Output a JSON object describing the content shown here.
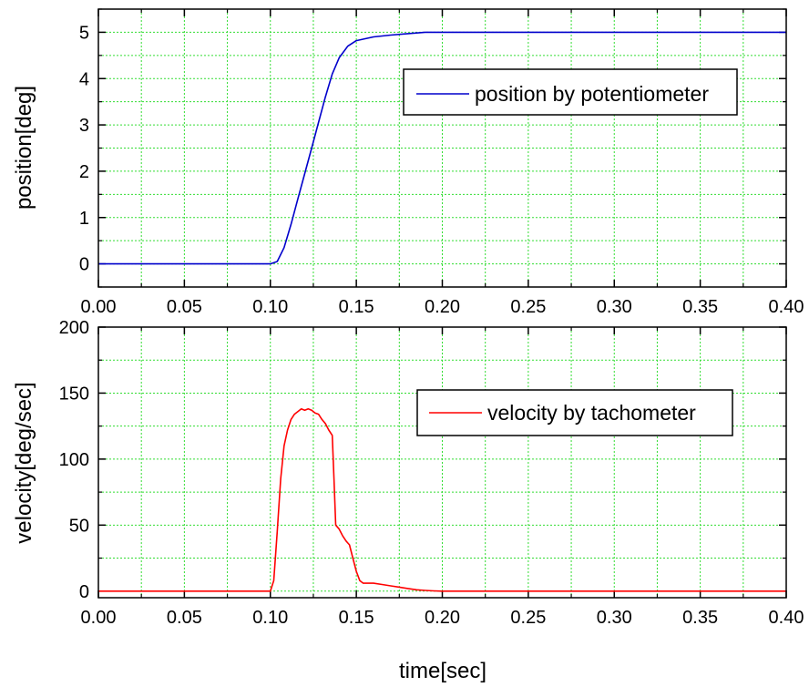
{
  "chart_data": [
    {
      "type": "line",
      "title": "",
      "xlabel": "",
      "ylabel": "position[deg]",
      "xlim": [
        0,
        0.4
      ],
      "ylim": [
        -0.5,
        5.5
      ],
      "xticks": [
        "0.00",
        "0.05",
        "0.10",
        "0.15",
        "0.20",
        "0.25",
        "0.30",
        "0.35",
        "0.40"
      ],
      "yticks": [
        "0",
        "1",
        "2",
        "3",
        "4",
        "5"
      ],
      "grid": true,
      "legend_placement": "top-right",
      "series": [
        {
          "name": "position by potentiometer",
          "color": "#0000cc",
          "x": [
            0,
            0.02,
            0.05,
            0.08,
            0.1,
            0.104,
            0.108,
            0.112,
            0.116,
            0.12,
            0.124,
            0.128,
            0.132,
            0.136,
            0.14,
            0.145,
            0.15,
            0.16,
            0.17,
            0.18,
            0.19,
            0.2,
            0.25,
            0.3,
            0.35,
            0.4
          ],
          "y": [
            0,
            0,
            0,
            0,
            0,
            0.05,
            0.35,
            0.85,
            1.4,
            1.95,
            2.5,
            3.05,
            3.6,
            4.1,
            4.45,
            4.7,
            4.82,
            4.9,
            4.94,
            4.97,
            5.0,
            5.0,
            5.0,
            5.0,
            5.0,
            5.0
          ]
        }
      ]
    },
    {
      "type": "line",
      "title": "",
      "xlabel": "time[sec]",
      "ylabel": "velocity[deg/sec]",
      "xlim": [
        0,
        0.4
      ],
      "ylim": [
        -5,
        200
      ],
      "xticks": [
        "0.00",
        "0.05",
        "0.10",
        "0.15",
        "0.20",
        "0.25",
        "0.30",
        "0.35",
        "0.40"
      ],
      "yticks": [
        "0",
        "50",
        "100",
        "150",
        "200"
      ],
      "grid": true,
      "legend_placement": "top-right",
      "series": [
        {
          "name": "velocity by tachometer",
          "color": "#ff0000",
          "x": [
            0,
            0.05,
            0.1,
            0.102,
            0.104,
            0.106,
            0.108,
            0.11,
            0.112,
            0.114,
            0.116,
            0.118,
            0.12,
            0.122,
            0.124,
            0.126,
            0.128,
            0.13,
            0.132,
            0.134,
            0.136,
            0.137,
            0.138,
            0.14,
            0.142,
            0.144,
            0.146,
            0.148,
            0.15,
            0.152,
            0.154,
            0.156,
            0.16,
            0.165,
            0.17,
            0.175,
            0.18,
            0.185,
            0.19,
            0.195,
            0.2,
            0.25,
            0.3,
            0.35,
            0.4
          ],
          "y": [
            0,
            0,
            0,
            8,
            45,
            85,
            110,
            122,
            130,
            134,
            136,
            138,
            137,
            138,
            137,
            135,
            134,
            130,
            127,
            122,
            118,
            85,
            50,
            47,
            42,
            38,
            35,
            25,
            15,
            8,
            6,
            6,
            6,
            5,
            4,
            3,
            2,
            1,
            0.5,
            0.2,
            0,
            0,
            0,
            0,
            0
          ]
        }
      ]
    }
  ]
}
